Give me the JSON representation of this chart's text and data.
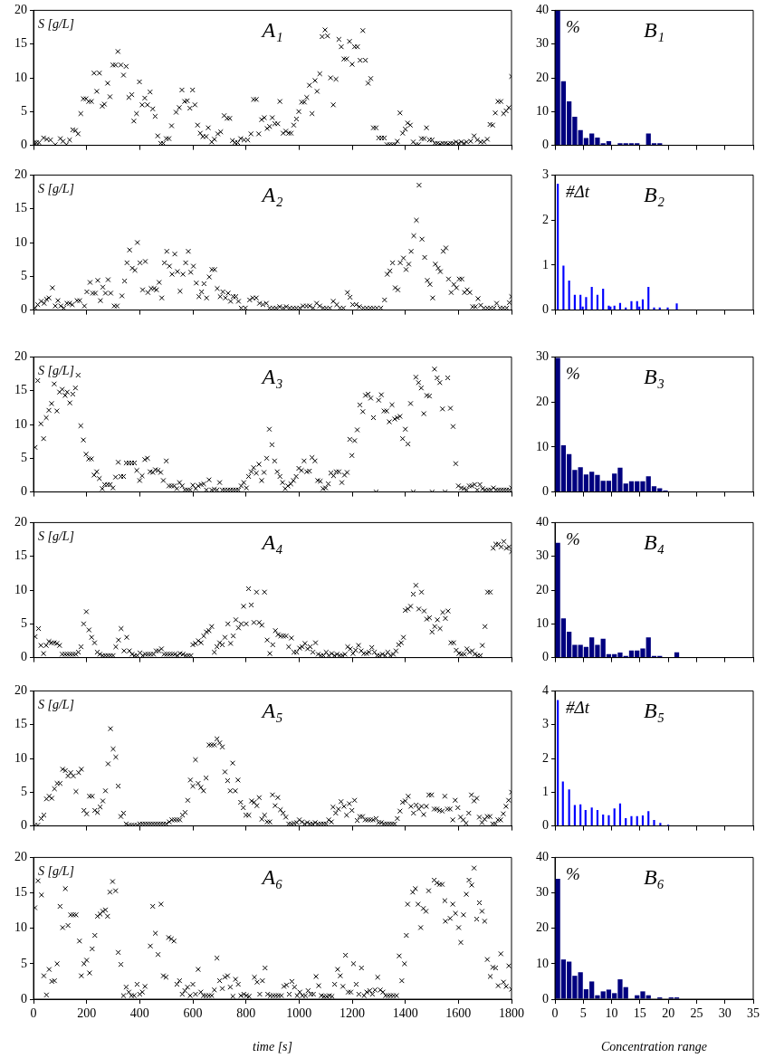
{
  "chart_data": [
    {
      "type": "scatter",
      "title": "A₁",
      "annotations": [
        "S [g/L]"
      ],
      "color": "#000000",
      "marker": "cross",
      "xlim": [
        0,
        1800
      ],
      "xticks": [
        0,
        200,
        400,
        600,
        800,
        1000,
        1200,
        1400,
        1600,
        1800
      ],
      "ylim": [
        0,
        20
      ],
      "yticks": [
        0,
        5,
        10,
        15,
        20
      ],
      "tick_labels": "y",
      "x": [
        3,
        11,
        21,
        38,
        50,
        64,
        82,
        101,
        111,
        124,
        136,
        148,
        158,
        168,
        178,
        188,
        198,
        208,
        218,
        228,
        238,
        248,
        259,
        267,
        279,
        288,
        299,
        309,
        318,
        329,
        339,
        349,
        359,
        370,
        378,
        388,
        399,
        409,
        419,
        429,
        439,
        449,
        458,
        468,
        479,
        489,
        500,
        510,
        520,
        537,
        549,
        559,
        569,
        579,
        589,
        599,
        608,
        618,
        628,
        638,
        650,
        658,
        671,
        681,
        694,
        705,
        718,
        729,
        739,
        749,
        759,
        769,
        780,
        793,
        807,
        819,
        829,
        839,
        848,
        859,
        869,
        880,
        889,
        899,
        909,
        920,
        928,
        940,
        950,
        961,
        970,
        980,
        990,
        999,
        1010,
        1020,
        1029,
        1039,
        1049,
        1060,
        1068,
        1078,
        1087,
        1098,
        1107,
        1119,
        1129,
        1139,
        1150,
        1159,
        1169,
        1179,
        1190,
        1200,
        1209,
        1220,
        1230,
        1240,
        1250,
        1260,
        1270,
        1280,
        1290,
        1300,
        1311,
        1321,
        1331,
        1341,
        1351,
        1361,
        1370,
        1380,
        1390,
        1400,
        1409,
        1419,
        1430,
        1440,
        1450,
        1461,
        1471,
        1480,
        1491,
        1501,
        1511,
        1521,
        1531,
        1541,
        1551,
        1561,
        1571,
        1581,
        1591,
        1601,
        1611,
        1621,
        1631,
        1646,
        1659,
        1671,
        1684,
        1696,
        1709,
        1719,
        1729,
        1739,
        1749,
        1760,
        1770,
        1780,
        1790,
        1800
      ],
      "values": [
        0.4,
        0.4,
        0.4,
        1.1,
        0.9,
        0.8,
        0.1,
        1,
        0.6,
        0.1,
        0.8,
        2.3,
        2.2,
        1.7,
        4.7,
        6.9,
        6.9,
        6.5,
        6.5,
        10.7,
        8,
        10.7,
        5.8,
        6.1,
        9.2,
        7.2,
        11.9,
        11.9,
        13.9,
        11.9,
        10.4,
        11.7,
        7.1,
        7.5,
        3.6,
        4.7,
        9.4,
        6,
        7,
        6,
        7.9,
        5.4,
        4.3,
        1.4,
        0.3,
        0.3,
        1,
        1,
        2.9,
        4.9,
        5.6,
        8.2,
        6.5,
        6.6,
        5.5,
        8.2,
        6,
        3,
        1.8,
        1.3,
        1.3,
        2.6,
        0.5,
        0.9,
        1.7,
        2,
        4.4,
        4,
        4,
        0.7,
        0.4,
        0.4,
        1,
        0.8,
        0.8,
        1.7,
        6.8,
        6.8,
        1.7,
        3.8,
        4.1,
        2.5,
        2.8,
        4.1,
        3.2,
        3.2,
        6.5,
        1.8,
        2.1,
        1.8,
        1.8,
        3,
        3.9,
        5,
        6.4,
        6.4,
        7.1,
        8.9,
        4.7,
        9.6,
        8,
        10.6,
        16.1,
        17.1,
        16.2,
        10,
        6,
        9.8,
        15.7,
        14.6,
        12.8,
        12.8,
        15.4,
        12,
        14.6,
        14.6,
        12.6,
        17,
        12.6,
        9.2,
        9.9,
        2.6,
        2.6,
        1.1,
        1.1,
        1.1,
        0.1,
        0.1,
        0.1,
        0.1,
        0.6,
        4.8,
        1.8,
        2.4,
        3.3,
        3,
        0.5,
        0.1,
        0.1,
        1,
        1,
        2.6,
        0.8,
        0.8,
        0.3,
        0.3,
        0.2,
        0.3,
        0.3,
        0.2,
        0.3,
        0.3,
        0.5,
        0.3,
        0.5,
        0.3,
        0.5,
        0.6,
        1.4,
        0.8,
        0.5,
        0.5,
        0.9,
        3.1,
        3,
        4.8,
        6.5,
        6.5,
        4.7,
        5.1,
        5.6,
        10.2
      ]
    },
    {
      "type": "histogram",
      "title": "B₁",
      "annotations": [
        "%"
      ],
      "color": "#00007f",
      "bins": [
        0,
        1,
        2,
        3,
        4,
        5,
        6,
        7,
        8,
        9,
        10,
        11,
        12,
        13,
        14,
        15,
        16,
        17,
        18,
        19,
        20,
        21,
        22,
        23,
        24,
        25,
        26,
        27,
        28,
        29,
        30,
        31,
        32,
        33,
        34,
        35
      ],
      "values": [
        40,
        19,
        13,
        8.5,
        4.5,
        2.2,
        3.5,
        2.3,
        0.6,
        1.2,
        0,
        0.6,
        0.6,
        0.6,
        0.6,
        0,
        3.5,
        0.6,
        0.6,
        0,
        0,
        0,
        0,
        0,
        0,
        0,
        0,
        0,
        0,
        0,
        0,
        0,
        0,
        0,
        0
      ],
      "xlim": [
        0,
        35
      ],
      "xticks": [
        0,
        5,
        10,
        15,
        20,
        25,
        30,
        35
      ],
      "ylim": [
        0,
        40
      ],
      "yticks": [
        0,
        10,
        20,
        30,
        40
      ],
      "tick_labels": "y"
    },
    {
      "type": "scatter",
      "title": "A₂",
      "annotations": [
        "S [g/L]"
      ],
      "color": "#000000",
      "marker": "cross",
      "xlim": [
        0,
        1800
      ],
      "xticks": [
        0,
        200,
        400,
        600,
        800,
        1000,
        1200,
        1400,
        1600,
        1800
      ],
      "ylim": [
        0,
        20
      ],
      "yticks": [
        0,
        5,
        10,
        15,
        20
      ],
      "tick_labels": "y",
      "x": [
        6,
        16,
        29,
        40,
        49,
        58,
        71,
        82,
        92,
        103,
        114,
        126,
        136,
        146,
        164,
        174,
        192,
        201,
        213,
        223,
        233,
        242,
        252,
        261,
        271,
        281,
        291,
        304,
        315,
        333,
        343,
        352,
        362,
        372,
        382,
        391,
        401,
        411,
        421,
        431,
        443,
        454,
        463,
        473,
        483,
        493,
        502,
        512,
        522,
        532,
        542,
        552,
        563,
        573,
        583,
        592,
        602,
        613,
        623,
        633,
        642,
        652,
        662,
        672,
        682,
        692,
        703,
        713,
        723,
        733,
        742,
        752,
        762,
        772,
        782,
        798,
        814,
        826,
        839,
        851,
        864,
        877,
        889,
        902,
        914,
        927,
        940,
        952,
        965,
        978,
        990,
        1003,
        1015,
        1028,
        1040,
        1053,
        1066,
        1078,
        1091,
        1103,
        1116,
        1129,
        1142,
        1154,
        1167,
        1182,
        1192,
        1202,
        1215,
        1227,
        1242,
        1255,
        1268,
        1280,
        1293,
        1308,
        1322,
        1332,
        1342,
        1352,
        1362,
        1372,
        1381,
        1393,
        1403,
        1413,
        1422,
        1432,
        1442,
        1452,
        1463,
        1473,
        1483,
        1493,
        1503,
        1513,
        1524,
        1532,
        1543,
        1553,
        1563,
        1573,
        1583,
        1593,
        1603,
        1613,
        1623,
        1633,
        1643,
        1654,
        1664,
        1674,
        1684,
        1696,
        1709,
        1721,
        1734,
        1744,
        1757,
        1769,
        1782,
        1792,
        1800
      ],
      "values": [
        0.3,
        0.8,
        1.3,
        1,
        1.6,
        1.8,
        3.3,
        0.6,
        1.4,
        0.6,
        0.3,
        1,
        1,
        0.8,
        1.4,
        1.4,
        0.6,
        2.7,
        4.1,
        2.5,
        2.5,
        4.4,
        1.4,
        3.4,
        2.5,
        4.5,
        2.5,
        0.6,
        0.6,
        2.1,
        4.3,
        7,
        8.9,
        6.2,
        5.9,
        10,
        7,
        3,
        7.2,
        2.6,
        3.2,
        3.2,
        3,
        4.1,
        1.8,
        7,
        8.7,
        6.5,
        5.3,
        8.3,
        5.7,
        2.8,
        5.3,
        7,
        8.7,
        5.6,
        6.5,
        4,
        2,
        2.7,
        3.9,
        1.8,
        4.9,
        6,
        6,
        3.2,
        2,
        2.7,
        1.8,
        2.5,
        1.3,
        2,
        2,
        1.3,
        0.3,
        0.3,
        1.5,
        1.8,
        1.8,
        1,
        0.8,
        1,
        0.3,
        0.3,
        0.3,
        0.5,
        0.3,
        0.5,
        0.3,
        0.3,
        0.3,
        0.3,
        0.6,
        0.6,
        0.6,
        0.3,
        1,
        0.6,
        0.3,
        0.3,
        0.3,
        1.3,
        0.8,
        0.3,
        0.3,
        2.6,
        1.9,
        0.8,
        0.8,
        0.5,
        0.3,
        0.3,
        0.3,
        0.3,
        0.3,
        0.3,
        1.5,
        5.3,
        5.8,
        7,
        3.3,
        3,
        7,
        7.7,
        6,
        6.8,
        8.7,
        11,
        13.3,
        18.5,
        10.5,
        7.8,
        4.4,
        3.8,
        1.8,
        6.8,
        6.2,
        5.7,
        8.7,
        9.2,
        4.6,
        2.6,
        3.8,
        3.3,
        4.6,
        4.6,
        2.6,
        3,
        2.6,
        0.5,
        0.5,
        1.7,
        0.7,
        0.3,
        0.3,
        0.3,
        0.3,
        1,
        0.3,
        0.3,
        0.3,
        1.1,
        2
      ]
    },
    {
      "type": "bar",
      "title": "B₂",
      "annotations": [
        "#Δt"
      ],
      "color": "#0000ff",
      "x": [
        0.5,
        1.5,
        2.5,
        3.5,
        4.5,
        4.9,
        5.5,
        6.5,
        7.5,
        8.5,
        9.5,
        9.8,
        10.5,
        11.5,
        12.5,
        13.5,
        14.5,
        14.9,
        15.5,
        16.5,
        17.5,
        18.5,
        19.9,
        21.5
      ],
      "values": [
        2.8,
        0.98,
        0.65,
        0.33,
        0.33,
        0.07,
        0.28,
        0.51,
        0.33,
        0.47,
        0.09,
        0.07,
        0.09,
        0.15,
        0.05,
        0.19,
        0.19,
        0.07,
        0.23,
        0.51,
        0.05,
        0.05,
        0.05,
        0.14
      ],
      "xlim": [
        0,
        35
      ],
      "xticks": [
        0,
        5,
        10,
        15,
        20,
        25,
        30,
        35
      ],
      "ylim": [
        0,
        3
      ],
      "yticks": [
        0,
        1,
        2,
        3
      ],
      "tick_labels": "y"
    },
    {
      "type": "scatter",
      "title": "A₃",
      "annotations": [
        "S [g/L]"
      ],
      "color": "#000000",
      "marker": "cross",
      "xlim": [
        0,
        1800
      ],
      "xticks": [
        0,
        200,
        400,
        600,
        800,
        1000,
        1200,
        1400,
        1600,
        1800
      ],
      "ylim": [
        0,
        20
      ],
      "yticks": [
        0,
        5,
        10,
        15,
        20
      ],
      "tick_labels": "y",
      "x": [
        6,
        16,
        28,
        38,
        48,
        58,
        68,
        78,
        88,
        98,
        108,
        119,
        127,
        137,
        148,
        158,
        168,
        178,
        188,
        198,
        208,
        218,
        228,
        238,
        248,
        259,
        268,
        279,
        289,
        299,
        309,
        319,
        329,
        339,
        349,
        359,
        370,
        380,
        389,
        400,
        409,
        419,
        429,
        439,
        449,
        459,
        469,
        479,
        489,
        500,
        510,
        520,
        530,
        540,
        550,
        560,
        570,
        580,
        590,
        600,
        611,
        620,
        631,
        641,
        651,
        661,
        671,
        681,
        691,
        701,
        711,
        721,
        732,
        742,
        752,
        762,
        772,
        782,
        792,
        802,
        810,
        820,
        829,
        839,
        849,
        859,
        868,
        878,
        888,
        898,
        908,
        918,
        928,
        938,
        948,
        958,
        969,
        979,
        989,
        999,
        1009,
        1019,
        1029,
        1039,
        1049,
        1060,
        1070,
        1080,
        1090,
        1100,
        1110,
        1120,
        1130,
        1140,
        1150,
        1161,
        1171,
        1181,
        1191,
        1199,
        1209,
        1219,
        1229,
        1240,
        1250,
        1260,
        1270,
        1280,
        1290,
        1300,
        1310,
        1320,
        1330,
        1340,
        1350,
        1360,
        1370,
        1380,
        1390,
        1400,
        1410,
        1420,
        1430,
        1440,
        1450,
        1460,
        1470,
        1481,
        1491,
        1501,
        1510,
        1520,
        1530,
        1540,
        1550,
        1560,
        1570,
        1580,
        1590,
        1600,
        1611,
        1621,
        1631,
        1641,
        1651,
        1661,
        1671,
        1681,
        1691,
        1701,
        1712,
        1722,
        1732,
        1742,
        1752,
        1762,
        1772,
        1782,
        1792,
        1800
      ],
      "values": [
        6.6,
        16.5,
        10.1,
        7.9,
        11,
        12.1,
        13.1,
        16,
        12,
        14.8,
        15.2,
        14.3,
        14.8,
        13.2,
        14.5,
        15.4,
        17.3,
        9.8,
        7.7,
        5.6,
        4.9,
        4.9,
        2.5,
        3,
        2,
        0.5,
        1.1,
        1.1,
        1.1,
        0.6,
        2.2,
        4.4,
        2.3,
        2.3,
        4.3,
        4.3,
        4.3,
        4.3,
        3.2,
        1.7,
        2.4,
        4.8,
        5,
        3,
        2.9,
        3.3,
        3.2,
        2.9,
        1.7,
        4.6,
        0.9,
        0.9,
        0.9,
        0.5,
        1.4,
        0.9,
        0.3,
        0.3,
        0.3,
        1,
        0.5,
        0.9,
        1.1,
        1.2,
        0.3,
        1.8,
        0.3,
        0.4,
        0.3,
        1.4,
        0.3,
        0.3,
        0.3,
        0.3,
        0.3,
        0.3,
        0.3,
        0.9,
        1.4,
        0.6,
        2.3,
        3,
        3.6,
        2.8,
        4.1,
        1.7,
        2.9,
        5,
        9.3,
        7,
        4.6,
        3,
        2.3,
        1.4,
        0.5,
        0.9,
        1.2,
        1.7,
        2.3,
        3.5,
        3.2,
        4.6,
        3,
        3.1,
        5.1,
        4.6,
        1.7,
        1.6,
        0.5,
        0.6,
        1.2,
        2.8,
        2.4,
        3,
        3,
        1.4,
        2.5,
        2.9,
        7.8,
        5.4,
        7.6,
        9.2,
        12.9,
        11.9,
        14.3,
        14.5,
        13.9,
        11,
        0,
        13.6,
        14.4,
        12,
        12,
        10.4,
        12.9,
        10.8,
        11,
        11.2,
        7.9,
        9.3,
        7.1,
        13.1,
        0,
        17,
        16.2,
        15.4,
        11.6,
        14.3,
        14.2,
        0,
        18.2,
        16.9,
        16.2,
        12.3,
        0,
        16.9,
        12.4,
        9.7,
        4.2,
        0.9,
        0.6,
        0.5,
        0.3,
        0.9,
        0.9,
        1.1,
        0.3,
        1.1,
        0.5,
        0.3,
        0.3,
        0.3,
        0.6,
        0.3,
        0.3,
        0.3,
        0.3,
        0.3,
        0.3,
        0.6
      ]
    },
    {
      "type": "histogram",
      "title": "B₃",
      "annotations": [
        "%"
      ],
      "color": "#00007f",
      "bins": [
        0,
        1,
        2,
        3,
        4,
        5,
        6,
        7,
        8,
        9,
        10,
        11,
        12,
        13,
        14,
        15,
        16,
        17,
        18,
        19,
        20,
        21,
        22,
        23,
        24,
        25,
        26,
        27,
        28,
        29,
        30,
        31,
        32,
        33,
        34,
        35
      ],
      "values": [
        29.8,
        10.4,
        8.4,
        4.9,
        5.5,
        3.9,
        4.5,
        3.8,
        2.5,
        2.5,
        4.1,
        5.4,
        1.9,
        2.4,
        2.4,
        2.4,
        3.5,
        1.3,
        0.8,
        0.3,
        0.1,
        0,
        0,
        0,
        0,
        0,
        0,
        0,
        0,
        0,
        0,
        0,
        0,
        0,
        0
      ],
      "xlim": [
        0,
        35
      ],
      "xticks": [
        0,
        5,
        10,
        15,
        20,
        25,
        30,
        35
      ],
      "ylim": [
        0,
        30
      ],
      "yticks": [
        0,
        10,
        20,
        30
      ],
      "tick_labels": "y"
    },
    {
      "type": "scatter",
      "title": "A₄",
      "annotations": [
        "S [g/L]"
      ],
      "color": "#000000",
      "marker": "cross",
      "xlim": [
        0,
        1800
      ],
      "xticks": [
        0,
        200,
        400,
        600,
        800,
        1000,
        1200,
        1400,
        1600,
        1800
      ],
      "ylim": [
        0,
        20
      ],
      "yticks": [
        0,
        5,
        10,
        15,
        20
      ],
      "tick_labels": "y",
      "x": [
        6,
        19,
        28,
        38,
        48,
        58,
        68,
        78,
        88,
        98,
        108,
        119,
        129,
        139,
        149,
        159,
        169,
        179,
        189,
        199,
        209,
        219,
        230,
        240,
        250,
        260,
        270,
        280,
        290,
        300,
        310,
        320,
        330,
        341,
        351,
        361,
        371,
        381,
        391,
        401,
        411,
        421,
        431,
        441,
        452,
        462,
        472,
        482,
        492,
        502,
        512,
        522,
        532,
        542,
        552,
        563,
        573,
        583,
        593,
        600,
        610,
        621,
        631,
        641,
        651,
        661,
        671,
        681,
        691,
        701,
        711,
        721,
        732,
        742,
        752,
        762,
        772,
        782,
        791,
        801,
        810,
        820,
        830,
        840,
        850,
        860,
        870,
        880,
        890,
        901,
        911,
        921,
        931,
        941,
        951,
        961,
        971,
        981,
        991,
        1002,
        1012,
        1022,
        1032,
        1042,
        1052,
        1062,
        1072,
        1082,
        1092,
        1102,
        1112,
        1123,
        1133,
        1143,
        1153,
        1163,
        1173,
        1183,
        1193,
        1203,
        1213,
        1224,
        1234,
        1244,
        1254,
        1264,
        1274,
        1284,
        1294,
        1304,
        1314,
        1324,
        1334,
        1344,
        1355,
        1365,
        1375,
        1385,
        1393,
        1400,
        1410,
        1420,
        1430,
        1440,
        1451,
        1461,
        1471,
        1481,
        1491,
        1501,
        1511,
        1521,
        1531,
        1541,
        1551,
        1561,
        1572,
        1582,
        1592,
        1602,
        1612,
        1622,
        1632,
        1642,
        1652,
        1662,
        1672,
        1683,
        1690,
        1700,
        1710,
        1720,
        1731,
        1741,
        1751,
        1761,
        1771,
        1781,
        1791,
        1800
      ],
      "values": [
        3.1,
        4.3,
        1.8,
        0.6,
        1.8,
        2.4,
        2.2,
        2.2,
        2.1,
        1.8,
        0.5,
        0.5,
        0.5,
        0.5,
        0.5,
        0.5,
        0.8,
        1.6,
        5,
        6.8,
        4.1,
        3,
        2.2,
        0.8,
        0.5,
        0.3,
        0.3,
        0.3,
        0.3,
        0.3,
        1.6,
        2.6,
        4.3,
        1,
        3,
        1,
        0.5,
        0.3,
        0.3,
        0.7,
        0.3,
        0.5,
        0.5,
        0.5,
        0.5,
        1,
        1,
        1.3,
        0.5,
        0.5,
        0.5,
        0.5,
        0.5,
        0.3,
        0.6,
        0.5,
        0.3,
        0.3,
        0.3,
        1.9,
        2.1,
        2.5,
        2.2,
        3.2,
        3.8,
        4,
        4.6,
        0.8,
        1.6,
        2.2,
        1.9,
        3,
        5,
        2.1,
        3.2,
        5.6,
        4.4,
        5,
        7.6,
        5,
        10.2,
        7.8,
        5.2,
        9.7,
        5.2,
        4.8,
        9.7,
        2.6,
        0.6,
        1.9,
        4,
        3.4,
        3.2,
        3.2,
        3.2,
        1.6,
        2.9,
        0.8,
        0.8,
        1.4,
        1.6,
        2.1,
        1.3,
        1.6,
        0.8,
        2.2,
        0.5,
        0.3,
        0.3,
        0.8,
        0.3,
        0.6,
        0.3,
        0.5,
        0.3,
        0.3,
        0.5,
        1.6,
        1.3,
        0.6,
        1.1,
        1.8,
        1,
        0.6,
        0.6,
        0.8,
        1.5,
        0.8,
        0.3,
        0.3,
        0.5,
        0.3,
        0.8,
        0.3,
        0.5,
        1,
        1.9,
        2.2,
        3,
        7,
        7.2,
        7.6,
        9.4,
        10.7,
        7.2,
        9.7,
        6.9,
        5.7,
        5.9,
        3.8,
        4.6,
        5.6,
        4.3,
        6.7,
        5.8,
        6.9,
        2.2,
        2.2,
        1.1,
        0.6,
        0.5,
        0.5,
        1.3,
        0.8,
        1,
        0.5,
        0.3,
        0.3,
        1.8,
        4.6,
        9.7,
        9.7,
        16.2,
        16.8,
        16.8,
        16.4,
        17.2,
        16.2,
        16.4,
        15.7
      ]
    },
    {
      "type": "histogram",
      "title": "B₄",
      "annotations": [
        "%"
      ],
      "color": "#00007f",
      "bins": [
        0,
        1,
        2,
        3,
        4,
        5,
        6,
        7,
        8,
        9,
        10,
        11,
        12,
        13,
        14,
        15,
        16,
        17,
        18,
        19,
        20,
        21,
        22,
        23,
        24,
        25,
        26,
        27,
        28,
        29,
        30,
        31,
        32,
        33,
        34,
        35
      ],
      "values": [
        34,
        11.6,
        7.7,
        3.8,
        3.8,
        3.2,
        6,
        3.8,
        5.6,
        1,
        1,
        1.5,
        0.5,
        2.1,
        2.1,
        2.7,
        6,
        0.5,
        0.5,
        0,
        0,
        1.6,
        0,
        0,
        0,
        0,
        0,
        0,
        0,
        0,
        0,
        0,
        0,
        0,
        0
      ],
      "xlim": [
        0,
        35
      ],
      "xticks": [
        0,
        5,
        10,
        15,
        20,
        25,
        30,
        35
      ],
      "ylim": [
        0,
        40
      ],
      "yticks": [
        0,
        10,
        20,
        30,
        40
      ],
      "tick_labels": "y"
    },
    {
      "type": "scatter",
      "title": "A₅",
      "annotations": [
        "S [g/L]"
      ],
      "color": "#000000",
      "marker": "cross",
      "xlim": [
        0,
        1800
      ],
      "xticks": [
        0,
        200,
        400,
        600,
        800,
        1000,
        1200,
        1400,
        1600,
        1800
      ],
      "ylim": [
        0,
        20
      ],
      "yticks": [
        0,
        5,
        10,
        15,
        20
      ],
      "tick_labels": "y",
      "x": [
        5,
        16,
        29,
        39,
        49,
        59,
        69,
        79,
        89,
        100,
        110,
        120,
        130,
        140,
        150,
        160,
        170,
        180,
        190,
        200,
        211,
        221,
        231,
        241,
        251,
        261,
        271,
        281,
        290,
        300,
        310,
        319,
        329,
        339,
        349,
        359,
        369,
        379,
        390,
        400,
        410,
        420,
        430,
        440,
        450,
        460,
        470,
        480,
        490,
        500,
        511,
        521,
        531,
        541,
        551,
        561,
        571,
        581,
        591,
        600,
        610,
        620,
        630,
        640,
        650,
        661,
        671,
        681,
        691,
        701,
        711,
        721,
        731,
        741,
        750,
        760,
        770,
        780,
        790,
        800,
        811,
        821,
        831,
        841,
        850,
        860,
        870,
        880,
        890,
        900,
        910,
        920,
        930,
        940,
        950,
        961,
        971,
        981,
        991,
        1001,
        1011,
        1021,
        1031,
        1041,
        1051,
        1061,
        1071,
        1082,
        1092,
        1102,
        1112,
        1122,
        1128,
        1138,
        1148,
        1158,
        1169,
        1179,
        1189,
        1199,
        1209,
        1219,
        1229,
        1239,
        1249,
        1259,
        1269,
        1279,
        1290,
        1300,
        1310,
        1320,
        1330,
        1340,
        1350,
        1360,
        1370,
        1380,
        1390,
        1400,
        1411,
        1421,
        1431,
        1441,
        1451,
        1461,
        1469,
        1479,
        1489,
        1499,
        1509,
        1519,
        1529,
        1539,
        1549,
        1559,
        1569,
        1579,
        1588,
        1598,
        1608,
        1618,
        1629,
        1639,
        1649,
        1659,
        1669,
        1679,
        1689,
        1699,
        1709,
        1719,
        1729,
        1739,
        1749,
        1759,
        1769,
        1779,
        1789,
        1800
      ],
      "values": [
        0.1,
        0.1,
        1.1,
        1.6,
        4,
        4.4,
        4.1,
        5.5,
        6.3,
        6.3,
        8.4,
        8.2,
        7.4,
        7.9,
        7.4,
        5.1,
        7.9,
        8.4,
        2.3,
        1.8,
        4.4,
        4.4,
        2.3,
        2,
        2.8,
        3.7,
        5.2,
        9.2,
        14.4,
        11.4,
        10.2,
        5.9,
        1.4,
        1.9,
        0.3,
        0.1,
        0.1,
        0.1,
        0.1,
        0.3,
        0.3,
        0.3,
        0.3,
        0.3,
        0.3,
        0.3,
        0.3,
        0.3,
        0.3,
        0.3,
        0.6,
        0.9,
        0.9,
        0.9,
        0.9,
        1.6,
        2,
        3.8,
        6.8,
        5.9,
        9.8,
        6.3,
        5.7,
        5.2,
        7.1,
        12,
        12,
        12,
        12.9,
        12.3,
        11.7,
        8,
        6.7,
        5.2,
        9.3,
        5.2,
        6.8,
        3.5,
        2.7,
        1.6,
        1.6,
        3.7,
        3.5,
        3,
        4.2,
        1,
        1.6,
        0.6,
        0.6,
        4.6,
        3,
        4.2,
        2.4,
        1.9,
        1.3,
        0.3,
        0.3,
        0.4,
        0.5,
        0.9,
        0.6,
        0.3,
        0.5,
        0.3,
        0.3,
        0.5,
        0.3,
        0.3,
        0.3,
        0.3,
        0.9,
        0.6,
        2.8,
        1.9,
        2.5,
        3.6,
        2.9,
        1.6,
        3.3,
        2.3,
        3.8,
        0.8,
        1.4,
        1.4,
        0.9,
        0.9,
        0.9,
        0.9,
        1.1,
        0.5,
        0.5,
        0.3,
        0.3,
        0.3,
        0.3,
        0.3,
        1.1,
        2.2,
        3.5,
        3.7,
        4.4,
        2.9,
        1.9,
        3.1,
        2.5,
        2.9,
        1.7,
        2.9,
        4.6,
        4.6,
        2.5,
        2.5,
        2.3,
        2.2,
        4.4,
        2.5,
        2.5,
        0.9,
        3.8,
        2.7,
        1.3,
        0.9,
        0.4,
        1.9,
        4.6,
        3.7,
        4.1,
        1.3,
        0.5,
        1,
        1.4,
        1.4,
        0.3,
        0.3,
        0.9,
        0.9,
        1.8,
        2.9,
        3.8,
        5
      ]
    },
    {
      "type": "bar",
      "title": "B₅",
      "annotations": [
        "#Δt"
      ],
      "color": "#0000ff",
      "x": [
        0.5,
        1.4,
        2.5,
        3.5,
        4.5,
        5.4,
        6.5,
        7.5,
        8.5,
        9.5,
        10.5,
        11.5,
        12.5,
        13.5,
        14.5,
        15.5,
        16.5,
        17.5,
        18.6,
        20
      ],
      "values": [
        3.72,
        1.31,
        1.07,
        0.61,
        0.63,
        0.46,
        0.54,
        0.46,
        0.33,
        0.31,
        0.51,
        0.66,
        0.22,
        0.28,
        0.28,
        0.3,
        0.43,
        0.17,
        0.08,
        0.03
      ],
      "xlim": [
        0,
        35
      ],
      "xticks": [
        0,
        5,
        10,
        15,
        20,
        25,
        30,
        35
      ],
      "ylim": [
        0,
        4
      ],
      "yticks": [
        0,
        1,
        2,
        3,
        4
      ],
      "tick_labels": "y"
    },
    {
      "type": "scatter",
      "title": "A₆",
      "xlabel": "time [s]",
      "annotations": [
        "S [g/L]"
      ],
      "color": "#000000",
      "marker": "cross",
      "xlim": [
        0,
        1800
      ],
      "xticks": [
        0,
        200,
        400,
        600,
        800,
        1000,
        1200,
        1400,
        1600,
        1800
      ],
      "ylim": [
        0,
        20
      ],
      "yticks": [
        0,
        5,
        10,
        15,
        20
      ],
      "x": [
        5,
        17,
        30,
        39,
        49,
        59,
        69,
        79,
        89,
        100,
        110,
        120,
        130,
        140,
        150,
        160,
        173,
        180,
        190,
        200,
        211,
        221,
        231,
        241,
        251,
        261,
        271,
        279,
        288,
        298,
        309,
        319,
        329,
        339,
        349,
        359,
        369,
        379,
        390,
        400,
        410,
        420,
        440,
        449,
        459,
        469,
        480,
        489,
        499,
        509,
        519,
        529,
        540,
        550,
        560,
        570,
        580,
        590,
        600,
        610,
        620,
        630,
        640,
        650,
        661,
        671,
        681,
        691,
        701,
        711,
        721,
        731,
        741,
        751,
        761,
        771,
        781,
        792,
        802,
        812,
        832,
        842,
        852,
        862,
        872,
        882,
        892,
        903,
        913,
        923,
        933,
        943,
        953,
        963,
        973,
        983,
        993,
        1003,
        1013,
        1024,
        1034,
        1044,
        1054,
        1064,
        1074,
        1084,
        1094,
        1104,
        1114,
        1124,
        1134,
        1145,
        1155,
        1165,
        1175,
        1185,
        1195,
        1205,
        1215,
        1225,
        1235,
        1245,
        1255,
        1266,
        1276,
        1286,
        1296,
        1306,
        1316,
        1326,
        1336,
        1346,
        1356,
        1367,
        1377,
        1387,
        1397,
        1404,
        1409,
        1428,
        1438,
        1448,
        1458,
        1468,
        1478,
        1488,
        1509,
        1519,
        1529,
        1539,
        1549,
        1551,
        1569,
        1579,
        1589,
        1601,
        1609,
        1619,
        1630,
        1640,
        1650,
        1659,
        1669,
        1679,
        1689,
        1699,
        1709,
        1720,
        1730,
        1740,
        1750,
        1760,
        1770,
        1780,
        1790,
        1800
      ],
      "values": [
        12.9,
        16.7,
        14.7,
        3.3,
        0.6,
        4.2,
        2.5,
        2.6,
        5,
        13.1,
        10.1,
        15.6,
        10.4,
        11.9,
        11.9,
        11.9,
        8.2,
        3.3,
        5,
        5.5,
        3.7,
        7.1,
        9,
        11.7,
        12,
        12.4,
        12.6,
        11.7,
        15.1,
        16.6,
        15.3,
        6.6,
        4.9,
        0.5,
        1.7,
        1,
        0.5,
        0.5,
        2.1,
        0.7,
        1,
        1.8,
        7.5,
        13.1,
        9.3,
        6.3,
        13.4,
        3.3,
        3.1,
        8.7,
        8.5,
        8.2,
        2.1,
        2.6,
        0.7,
        1.2,
        1.7,
        0.5,
        2.1,
        0.7,
        4.2,
        1,
        0.5,
        0.5,
        0.5,
        0.5,
        1.3,
        5.8,
        2.6,
        1.5,
        3.1,
        3.3,
        1.7,
        0.4,
        2.8,
        2.1,
        0.5,
        0.7,
        0.5,
        0.4,
        3.1,
        2.4,
        0.7,
        2.6,
        4.4,
        0.7,
        0.5,
        0.5,
        0.5,
        0.5,
        0.5,
        1.8,
        2,
        0.7,
        2.5,
        1.7,
        0.5,
        1,
        0.5,
        0.5,
        1.2,
        0.7,
        0.7,
        3.2,
        1.9,
        0.5,
        0.4,
        0.4,
        0.5,
        0.4,
        2.1,
        4.2,
        3.3,
        1.8,
        6.2,
        1,
        1,
        5,
        2.1,
        0.7,
        4.4,
        0.5,
        1,
        1.2,
        0.7,
        1.3,
        3.1,
        1.3,
        1,
        0.5,
        0.5,
        0.5,
        0.5,
        0.5,
        6.1,
        2.6,
        5,
        9,
        13.4,
        15.1,
        15.6,
        13.4,
        10.1,
        12.8,
        12.4,
        15.3,
        16.8,
        16.4,
        16.2,
        16.2,
        13.9,
        11,
        11.4,
        13.4,
        12.1,
        10.1,
        8,
        11.9,
        14.8,
        16.8,
        16.1,
        18.5,
        11.3,
        13.6,
        12.4,
        11,
        5.6,
        3.2,
        4.5,
        4.4,
        1.9,
        6.4,
        2.4,
        1.8,
        4.7,
        1.4
      ]
    },
    {
      "type": "histogram",
      "title": "B₆",
      "xlabel": "Concentration range",
      "annotations": [
        "%"
      ],
      "color": "#00007f",
      "bins": [
        0,
        1,
        2,
        3,
        4,
        5,
        6,
        7,
        8,
        9,
        10,
        11,
        12,
        13,
        14,
        15,
        16,
        17,
        18,
        19,
        20,
        21,
        22,
        23,
        24,
        25,
        26,
        27,
        28,
        29,
        30,
        31,
        32,
        33,
        34,
        35
      ],
      "values": [
        34,
        11.2,
        10.6,
        6.6,
        7.6,
        2.8,
        5,
        1.1,
        2.2,
        2.7,
        1.7,
        5.6,
        3.4,
        0,
        1.1,
        2.2,
        1.1,
        0,
        0.5,
        0,
        0.5,
        0.5,
        0,
        0,
        0,
        0,
        0,
        0,
        0,
        0,
        0,
        0,
        0,
        0,
        0
      ],
      "xlim": [
        0,
        35
      ],
      "xticks": [
        0,
        5,
        10,
        15,
        20,
        25,
        30,
        35
      ],
      "ylim": [
        0,
        40
      ],
      "yticks": [
        0,
        10,
        20,
        30,
        40
      ]
    }
  ]
}
